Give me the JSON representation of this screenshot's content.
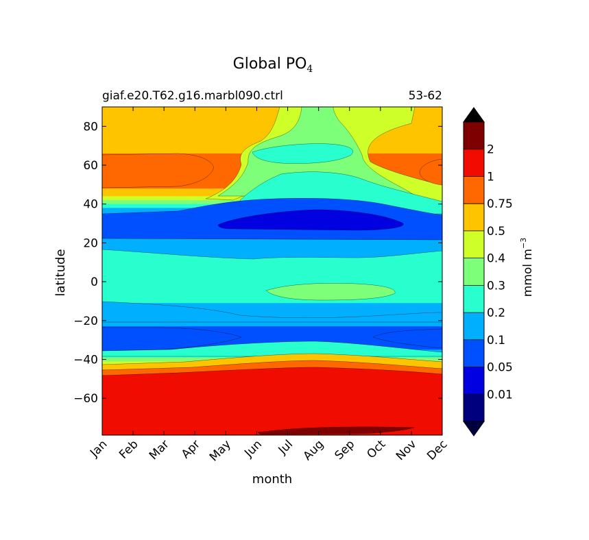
{
  "chart_data": {
    "type": "heatmap",
    "title": "Global PO",
    "title_subscript": "4",
    "subtitle_left": "giaf.e20.T62.g16.marbl090.ctrl",
    "subtitle_right": "53-62",
    "xlabel": "month",
    "ylabel": "latitude",
    "x_categories": [
      "Jan",
      "Feb",
      "Mar",
      "Apr",
      "May",
      "Jun",
      "Jul",
      "Aug",
      "Sep",
      "Oct",
      "Nov",
      "Dec"
    ],
    "xlim": [
      1,
      12
    ],
    "ylim": [
      -79,
      90
    ],
    "y_ticks": [
      80,
      60,
      40,
      20,
      0,
      -20,
      -40,
      -60
    ],
    "y_tick_labels": [
      "80",
      "60",
      "40",
      "20",
      "0",
      "−20",
      "−40",
      "−60"
    ],
    "colorbar": {
      "label": "mmol m",
      "label_superscript": "−3",
      "levels": [
        "0.01",
        "0.05",
        "0.1",
        "0.2",
        "0.3",
        "0.4",
        "0.5",
        "0.75",
        "1",
        "2"
      ],
      "colors": [
        "#00007f",
        "#0000e0",
        "#0050ff",
        "#00b0ff",
        "#29ffce",
        "#7dff7a",
        "#ceff29",
        "#ffc400",
        "#ff6800",
        "#f10c00",
        "#7f0000"
      ],
      "extend_low_color": "#00003f",
      "extend_high_color": "#000000"
    },
    "base_band_levels": [
      {
        "y": [
          82,
          90
        ],
        "level": 7
      },
      {
        "y": [
          66,
          82
        ],
        "level": 7
      },
      {
        "y": [
          48,
          66
        ],
        "level": 8
      },
      {
        "y": [
          44,
          48
        ],
        "level": 7
      },
      {
        "y": [
          42,
          44
        ],
        "level": 6
      },
      {
        "y": [
          40,
          42
        ],
        "level": 5
      },
      {
        "y": [
          38,
          40
        ],
        "level": 4
      },
      {
        "y": [
          30,
          38
        ],
        "level": 3
      },
      {
        "y": [
          22,
          30
        ],
        "level": 2
      },
      {
        "y": [
          17,
          22
        ],
        "level": 3
      },
      {
        "y": [
          -11,
          17
        ],
        "level": 4
      },
      {
        "y": [
          -23,
          -11
        ],
        "level": 3
      },
      {
        "y": [
          -35,
          -23
        ],
        "level": 2
      },
      {
        "y": [
          -37,
          -35
        ],
        "level": 3
      },
      {
        "y": [
          -39,
          -37
        ],
        "level": 4
      },
      {
        "y": [
          -41,
          -39
        ],
        "level": 5
      },
      {
        "y": [
          -43,
          -41
        ],
        "level": 6
      },
      {
        "y": [
          -45,
          -43
        ],
        "level": 7
      },
      {
        "y": [
          -47,
          -45
        ],
        "level": 8
      },
      {
        "y": [
          -79,
          -47
        ],
        "level": 9
      }
    ]
  }
}
